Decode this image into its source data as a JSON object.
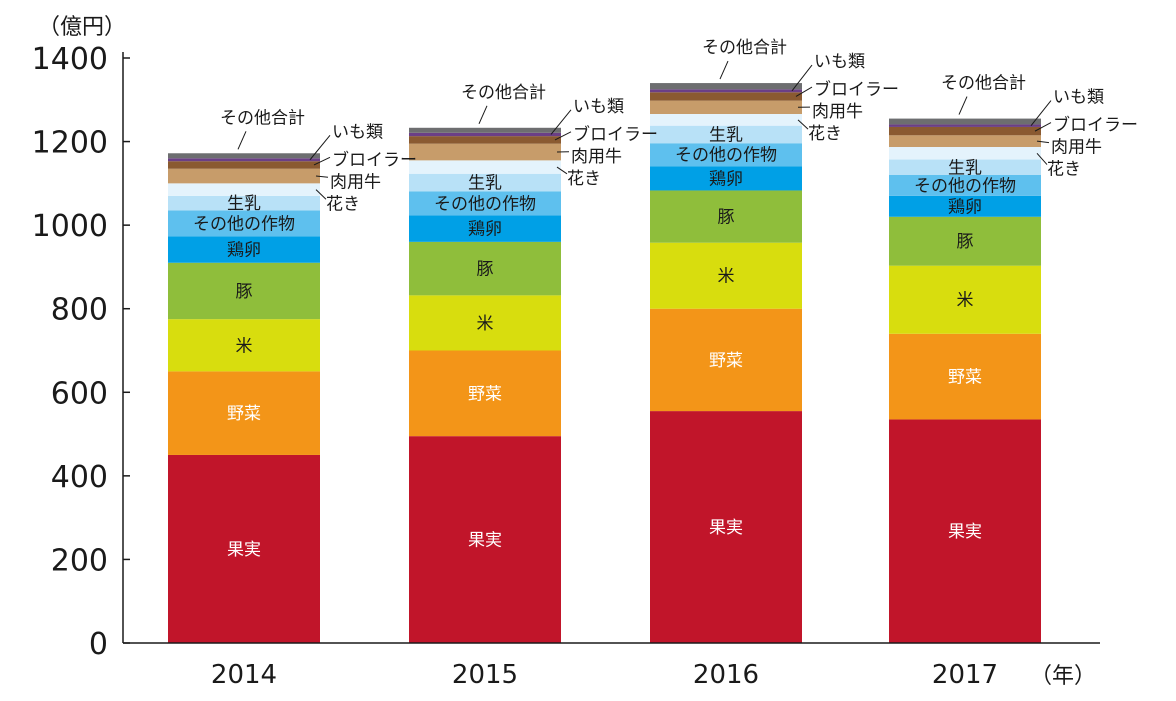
{
  "chart_data": {
    "type": "bar",
    "stacked": true,
    "y_unit": "（億円）",
    "x_unit": "（年）",
    "ylim": [
      0,
      1400
    ],
    "yticks": [
      0,
      200,
      400,
      600,
      800,
      1000,
      1200,
      1400
    ],
    "categories": [
      "2014",
      "2015",
      "2016",
      "2017"
    ],
    "series": [
      {
        "name": "果実",
        "color": "#c1152a",
        "text_color": "#ffffff",
        "values": [
          450,
          495,
          555,
          535
        ]
      },
      {
        "name": "野菜",
        "color": "#f39518",
        "text_color": "#ffffff",
        "values": [
          200,
          205,
          245,
          205
        ]
      },
      {
        "name": "米",
        "color": "#d8dd0e",
        "text_color": "#1a1a1a",
        "values": [
          125,
          132,
          158,
          163
        ]
      },
      {
        "name": "豚",
        "color": "#8fbe3b",
        "text_color": "#1a1a1a",
        "values": [
          135,
          128,
          125,
          117
        ]
      },
      {
        "name": "鶏卵",
        "color": "#00a0e6",
        "text_color": "#1a1a1a",
        "values": [
          63,
          63,
          58,
          50
        ]
      },
      {
        "name": "その他の作物",
        "color": "#5ec0ee",
        "text_color": "#1a1a1a",
        "values": [
          62,
          58,
          55,
          50
        ]
      },
      {
        "name": "生乳",
        "color": "#b8e1f7",
        "text_color": "#1a1a1a",
        "values": [
          35,
          42,
          42,
          37
        ]
      },
      {
        "name": "花き",
        "color": "#e4f3fc",
        "text_color": "#1a1a1a",
        "values": [
          30,
          32,
          28,
          30
        ]
      },
      {
        "name": "肉用牛",
        "color": "#c79c6a",
        "text_color": "#1a1a1a",
        "values": [
          35,
          40,
          32,
          28
        ]
      },
      {
        "name": "ブロイラー",
        "color": "#8a5a31",
        "text_color": "#1a1a1a",
        "values": [
          18,
          18,
          20,
          20
        ]
      },
      {
        "name": "いも類",
        "color": "#6b3f86",
        "text_color": "#1a1a1a",
        "values": [
          7,
          8,
          7,
          6
        ]
      },
      {
        "name": "その他合計",
        "color": "#6d6e70",
        "text_color": "#1a1a1a",
        "values": [
          12,
          12,
          15,
          14
        ]
      }
    ]
  }
}
